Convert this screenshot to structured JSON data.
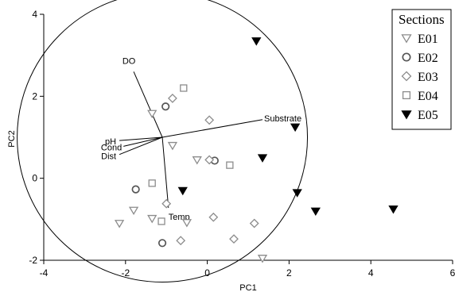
{
  "chart_data": {
    "type": "scatter",
    "xlabel": "PC1",
    "ylabel": "PC2",
    "xlim": [
      -4,
      6
    ],
    "ylim": [
      -2,
      4
    ],
    "xticks": [
      -4,
      -2,
      0,
      2,
      4,
      6
    ],
    "yticks": [
      -2,
      0,
      2,
      4
    ],
    "legend": {
      "title": "Sections",
      "placement": "top-right"
    },
    "series": [
      {
        "name": "E01",
        "marker": "triangle-down-open",
        "color": "#8c8c8c",
        "points": [
          {
            "x": -1.35,
            "y": 1.58
          },
          {
            "x": -0.85,
            "y": 0.8
          },
          {
            "x": -0.25,
            "y": 0.45
          },
          {
            "x": -1.8,
            "y": -0.78
          },
          {
            "x": -2.15,
            "y": -1.1
          },
          {
            "x": -1.35,
            "y": -0.98
          },
          {
            "x": -0.5,
            "y": -1.08
          },
          {
            "x": 1.35,
            "y": -1.95
          }
        ]
      },
      {
        "name": "E02",
        "marker": "circle-open",
        "color": "#555555",
        "points": [
          {
            "x": -1.02,
            "y": 1.75
          },
          {
            "x": 0.18,
            "y": 0.43
          },
          {
            "x": -1.75,
            "y": -0.27
          },
          {
            "x": -1.1,
            "y": -1.58
          }
        ]
      },
      {
        "name": "E03",
        "marker": "diamond-open",
        "color": "#8c8c8c",
        "points": [
          {
            "x": -0.85,
            "y": 1.95
          },
          {
            "x": 0.05,
            "y": 1.42
          },
          {
            "x": 0.05,
            "y": 0.45
          },
          {
            "x": -1.0,
            "y": -0.62
          },
          {
            "x": 0.15,
            "y": -0.95
          },
          {
            "x": -0.65,
            "y": -1.52
          },
          {
            "x": 0.65,
            "y": -1.48
          },
          {
            "x": 1.15,
            "y": -1.1
          }
        ]
      },
      {
        "name": "E04",
        "marker": "square-open",
        "color": "#8c8c8c",
        "points": [
          {
            "x": -0.58,
            "y": 2.2
          },
          {
            "x": 0.55,
            "y": 0.32
          },
          {
            "x": -1.35,
            "y": -0.12
          },
          {
            "x": -1.12,
            "y": -1.05
          }
        ]
      },
      {
        "name": "E05",
        "marker": "triangle-down-filled",
        "color": "#000000",
        "points": [
          {
            "x": 1.2,
            "y": 3.35
          },
          {
            "x": 2.15,
            "y": 1.25
          },
          {
            "x": 1.35,
            "y": 0.5
          },
          {
            "x": -0.6,
            "y": -0.3
          },
          {
            "x": 2.2,
            "y": -0.35
          },
          {
            "x": 2.65,
            "y": -0.8
          },
          {
            "x": 4.55,
            "y": -0.75
          }
        ]
      }
    ],
    "vectors": [
      {
        "label": "DO",
        "x": -1.8,
        "y": 2.6
      },
      {
        "label": "Substrate",
        "x": 1.35,
        "y": 1.43
      },
      {
        "label": "pH",
        "x": -2.15,
        "y": 0.92
      },
      {
        "label": "Cond",
        "x": -2.05,
        "y": 0.78
      },
      {
        "label": "Dist",
        "x": -2.15,
        "y": 0.58
      },
      {
        "label": "Temp",
        "x": -0.95,
        "y": -0.72
      }
    ],
    "vector_origin": {
      "x": -1.1,
      "y": 1.0
    },
    "correlation_circle": {
      "center_x": -1.1,
      "center_y": 1.0,
      "radius_x": 3.55
    }
  }
}
